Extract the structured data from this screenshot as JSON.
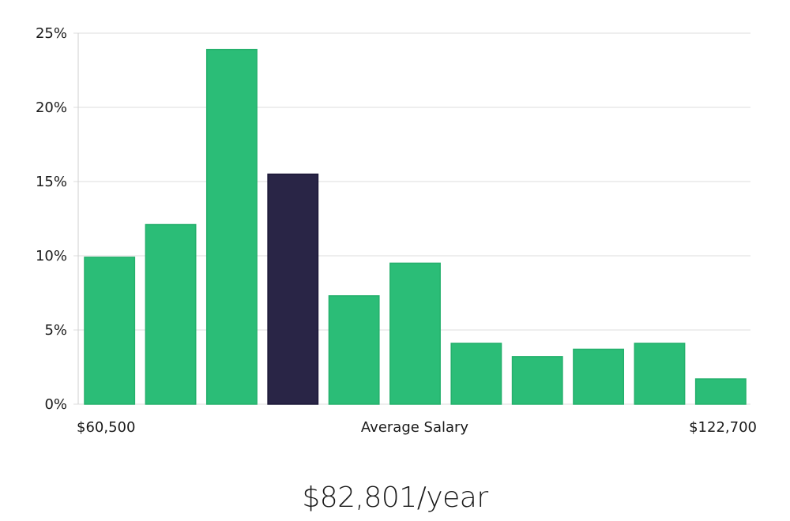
{
  "chart_data": {
    "type": "bar",
    "values": [
      9.9,
      12.1,
      23.9,
      15.5,
      7.3,
      9.5,
      4.1,
      3.2,
      3.7,
      4.1,
      1.7
    ],
    "highlight_index": 3,
    "yticks": [
      "0%",
      "5%",
      "10%",
      "15%",
      "20%",
      "25%"
    ],
    "ylim": [
      0,
      25
    ],
    "xlabel": "Average Salary",
    "x_min_label": "$60,500",
    "x_max_label": "$122,700",
    "grid": true,
    "colors": {
      "bar": "#2bbd77",
      "bar_stroke": "#24b06c",
      "highlight": "#292546",
      "highlight_stroke": "#1c1838"
    }
  },
  "headline": "$82,801/year"
}
